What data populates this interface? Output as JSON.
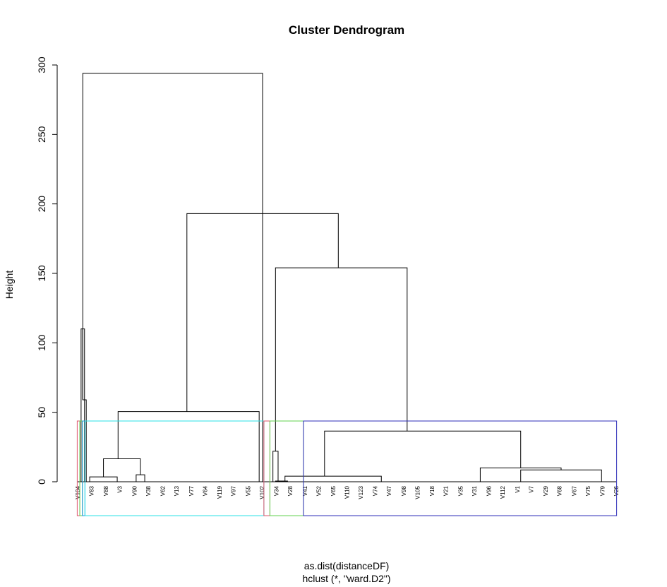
{
  "chart_data": {
    "type": "dendrogram",
    "title": "Cluster Dendrogram",
    "ylabel": "Height",
    "xlabel": "as.dist(distanceDF)",
    "sub": "hclust (*, \"ward.D2\")",
    "ylim": [
      0,
      300
    ],
    "yticks": [
      0,
      50,
      100,
      150,
      200,
      250,
      300
    ],
    "merges": [
      {
        "x1": 6,
        "x2": 215,
        "h1": 59,
        "h2": 0,
        "h": 294
      },
      {
        "x1": 4,
        "x2": 8,
        "h1": 0,
        "h2": 0,
        "h": 110
      },
      {
        "x1": 6,
        "x2": 10,
        "h1": 110,
        "h2": 0,
        "h": 59
      },
      {
        "x1": 127,
        "x2": 303,
        "h1": 50.5,
        "h2": 154,
        "h": 193
      },
      {
        "x1": 230,
        "x2": 383,
        "h1": 22,
        "h2": 36.5,
        "h": 154
      },
      {
        "x1": 47,
        "x2": 211,
        "h1": 16.5,
        "h2": 0,
        "h": 50.5
      },
      {
        "x1": 30,
        "x2": 73,
        "h1": 3.5,
        "h2": 5,
        "h": 16.5
      },
      {
        "x1": 14,
        "x2": 46,
        "h1": 0,
        "h2": 0,
        "h": 3.5
      },
      {
        "x1": 68,
        "x2": 78,
        "h1": 0,
        "h2": 0,
        "h": 5
      },
      {
        "x1": 227,
        "x2": 233,
        "h1": 0,
        "h2": 0.5,
        "h": 22
      },
      {
        "x1": 230,
        "x2": 244,
        "h1": 0,
        "h2": 0,
        "h": 0.5
      },
      {
        "x1": 287,
        "x2": 515,
        "h1": 4,
        "h2": 10,
        "h": 36.5
      },
      {
        "x1": 241,
        "x2": 353,
        "h1": 0,
        "h2": 0,
        "h": 4
      },
      {
        "x1": 468,
        "x2": 562,
        "h1": 0,
        "h2": 8.5,
        "h": 10
      },
      {
        "x1": 515,
        "x2": 609,
        "h1": 0,
        "h2": 0,
        "h": 8.5
      }
    ],
    "leaf_labels": [
      "V104",
      "V83",
      "V88",
      "V3",
      "V90",
      "V38",
      "V62",
      "V13",
      "V77",
      "V64",
      "V119",
      "V97",
      "V55",
      "V102",
      "V34",
      "V28",
      "V41",
      "V52",
      "V65",
      "V110",
      "V123",
      "V74",
      "V47",
      "V98",
      "V105",
      "V18",
      "V21",
      "V35",
      "V31",
      "V96",
      "V112",
      "V1",
      "V7",
      "V29",
      "V68",
      "V67",
      "V75",
      "V79",
      "V26"
    ],
    "clusters": [
      {
        "name": "k1",
        "color": "#df536b",
        "from": 0,
        "to": 3
      },
      {
        "name": "k2",
        "color": "#61d04f",
        "from": 3,
        "to": 6
      },
      {
        "name": "k3",
        "color": "#2297e6",
        "from": 6,
        "to": 9
      },
      {
        "name": "k4",
        "color": "#28e2e5",
        "from": 9,
        "to": 217
      },
      {
        "name": "k5",
        "color": "#df536b",
        "from": 217,
        "to": 224
      },
      {
        "name": "k6",
        "color": "#61d04f",
        "from": 224,
        "to": 263
      },
      {
        "name": "k7",
        "color": "#2e2eb8",
        "from": 263,
        "to": 627
      }
    ]
  }
}
